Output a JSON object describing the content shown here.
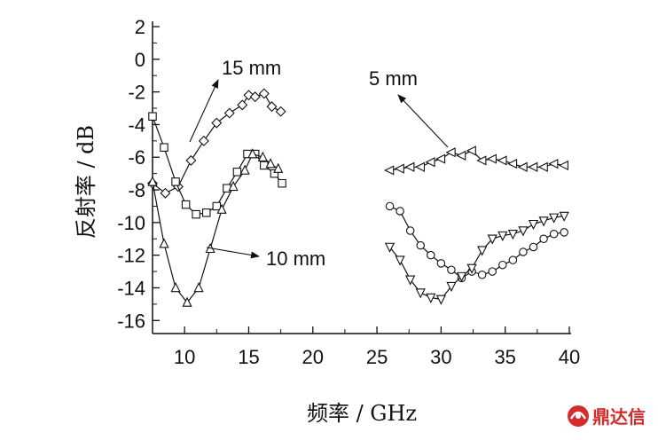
{
  "chart_data": {
    "type": "line",
    "xlabel": "频率 / GHz",
    "ylabel": "反射率 / dB",
    "xlim": [
      7.5,
      40
    ],
    "ylim": [
      -16.8,
      2
    ],
    "xticks": [
      10,
      15,
      20,
      25,
      30,
      35,
      40
    ],
    "yticks": [
      2,
      0,
      -2,
      -4,
      -6,
      -8,
      -10,
      -12,
      -14,
      -16
    ],
    "grid": false,
    "series": [
      {
        "name": "15 mm",
        "marker": "diamond",
        "points": [
          [
            7.5,
            -7.6
          ],
          [
            8.5,
            -8.2
          ],
          [
            9.5,
            -7.8
          ],
          [
            10.5,
            -6.2
          ],
          [
            11.5,
            -5.0
          ],
          [
            12.5,
            -3.9
          ],
          [
            13.5,
            -3.3
          ],
          [
            14.5,
            -2.8
          ],
          [
            15.0,
            -2.2
          ],
          [
            15.5,
            -2.3
          ],
          [
            16.2,
            -2.1
          ],
          [
            16.8,
            -2.9
          ],
          [
            17.5,
            -3.2
          ]
        ]
      },
      {
        "name": "",
        "marker": "square",
        "points": [
          [
            7.5,
            -3.5
          ],
          [
            8.4,
            -5.4
          ],
          [
            9.3,
            -7.5
          ],
          [
            10.1,
            -8.9
          ],
          [
            10.9,
            -9.5
          ],
          [
            11.7,
            -9.4
          ],
          [
            12.5,
            -9.0
          ],
          [
            13.3,
            -7.9
          ],
          [
            14.1,
            -6.9
          ],
          [
            14.9,
            -5.8
          ],
          [
            15.5,
            -5.8
          ],
          [
            16.2,
            -6.5
          ],
          [
            17.0,
            -7.0
          ],
          [
            17.6,
            -7.6
          ]
        ]
      },
      {
        "name": "10 mm",
        "marker": "triangle-up",
        "points": [
          [
            7.5,
            -7.5
          ],
          [
            8.4,
            -11.3
          ],
          [
            9.3,
            -14.0
          ],
          [
            10.2,
            -14.9
          ],
          [
            11.1,
            -14.0
          ],
          [
            12.0,
            -11.6
          ],
          [
            12.9,
            -9.2
          ],
          [
            13.8,
            -7.8
          ],
          [
            14.7,
            -6.8
          ],
          [
            15.3,
            -5.8
          ],
          [
            16.1,
            -6.0
          ],
          [
            16.7,
            -6.4
          ],
          [
            17.3,
            -6.7
          ]
        ]
      },
      {
        "name": "5 mm",
        "marker": "triangle-left",
        "points": [
          [
            26.0,
            -6.8
          ],
          [
            26.8,
            -6.7
          ],
          [
            27.6,
            -6.6
          ],
          [
            28.4,
            -6.6
          ],
          [
            29.2,
            -6.3
          ],
          [
            30.0,
            -6.1
          ],
          [
            30.8,
            -5.7
          ],
          [
            31.6,
            -5.9
          ],
          [
            32.4,
            -5.6
          ],
          [
            33.2,
            -6.2
          ],
          [
            34.0,
            -6.1
          ],
          [
            34.8,
            -6.2
          ],
          [
            35.6,
            -6.4
          ],
          [
            36.4,
            -6.6
          ],
          [
            37.2,
            -6.6
          ],
          [
            38.0,
            -6.6
          ],
          [
            38.8,
            -6.4
          ],
          [
            39.6,
            -6.5
          ]
        ]
      },
      {
        "name": "",
        "marker": "circle",
        "points": [
          [
            26.0,
            -9.0
          ],
          [
            26.8,
            -9.3
          ],
          [
            27.6,
            -10.5
          ],
          [
            28.4,
            -11.4
          ],
          [
            29.2,
            -12.0
          ],
          [
            30.0,
            -12.5
          ],
          [
            30.8,
            -12.9
          ],
          [
            31.6,
            -13.4
          ],
          [
            32.4,
            -13.0
          ],
          [
            33.2,
            -13.2
          ],
          [
            34.0,
            -13.0
          ],
          [
            34.8,
            -12.6
          ],
          [
            35.6,
            -12.3
          ],
          [
            36.4,
            -11.8
          ],
          [
            37.2,
            -11.5
          ],
          [
            38.0,
            -11.0
          ],
          [
            38.8,
            -10.7
          ],
          [
            39.6,
            -10.6
          ]
        ]
      },
      {
        "name": "",
        "marker": "triangle-down",
        "points": [
          [
            26.0,
            -11.5
          ],
          [
            26.8,
            -12.3
          ],
          [
            27.6,
            -13.5
          ],
          [
            28.4,
            -14.3
          ],
          [
            29.2,
            -14.6
          ],
          [
            30.0,
            -14.7
          ],
          [
            30.8,
            -13.9
          ],
          [
            31.6,
            -13.3
          ],
          [
            32.4,
            -12.8
          ],
          [
            33.2,
            -11.7
          ],
          [
            34.0,
            -11.0
          ],
          [
            34.8,
            -10.8
          ],
          [
            35.6,
            -10.7
          ],
          [
            36.4,
            -10.5
          ],
          [
            37.2,
            -10.1
          ],
          [
            38.0,
            -9.9
          ],
          [
            38.8,
            -9.7
          ],
          [
            39.6,
            -9.6
          ]
        ]
      }
    ],
    "annotations": [
      {
        "text": "15 mm",
        "points_to": [
          10.8,
          -6.0
        ]
      },
      {
        "text": "5 mm",
        "points_to": [
          30.5,
          -5.8
        ]
      },
      {
        "text": "10 mm",
        "points_to": [
          11.9,
          -11.8
        ]
      }
    ]
  },
  "logo": {
    "text": "鼎达信"
  }
}
